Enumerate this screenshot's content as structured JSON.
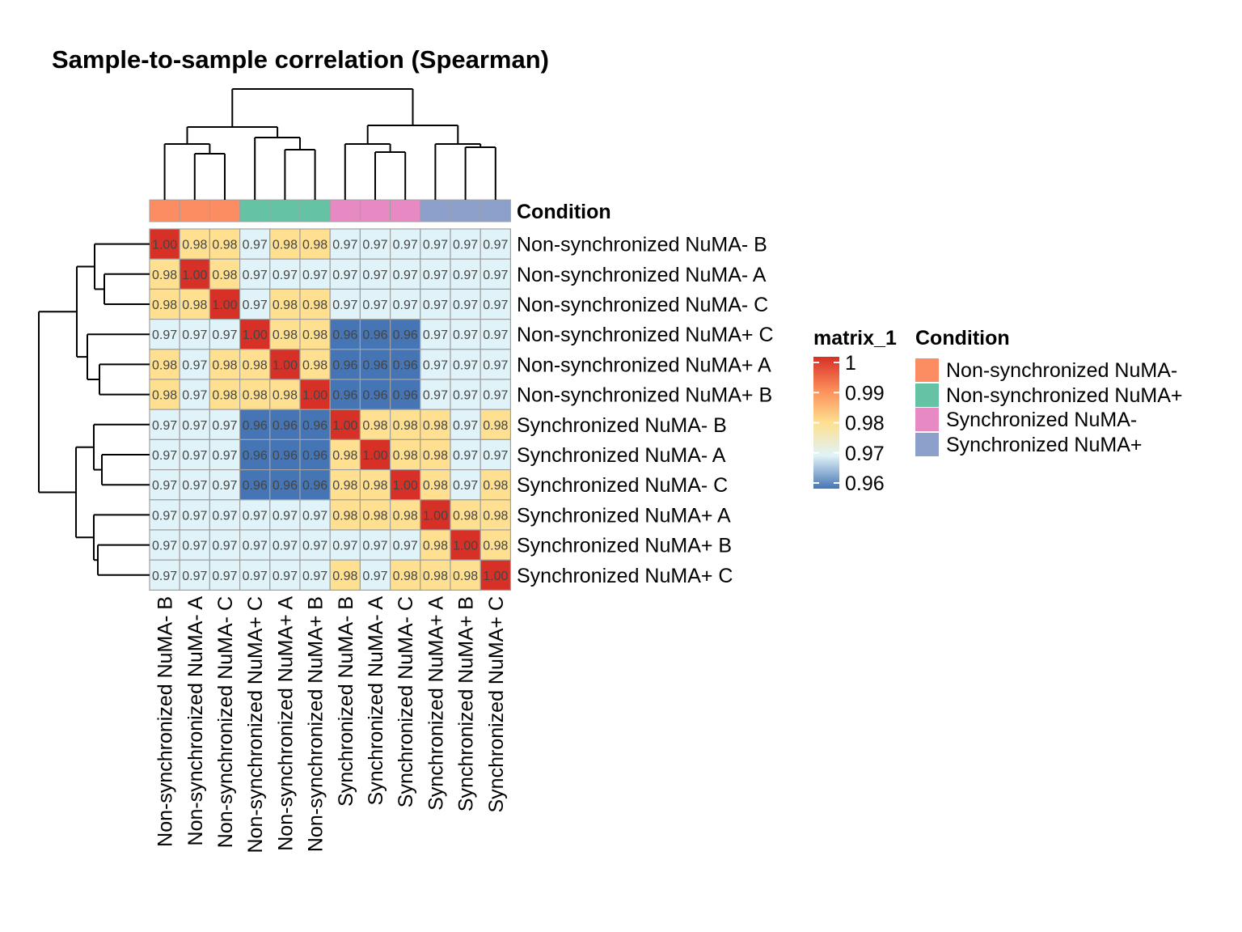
{
  "chart_data": {
    "type": "heatmap",
    "title": "Sample-to-sample correlation (Spearman)",
    "samples": [
      "Non-synchronized NuMA- B",
      "Non-synchronized NuMA- A",
      "Non-synchronized NuMA- C",
      "Non-synchronized NuMA+ C",
      "Non-synchronized NuMA+ A",
      "Non-synchronized NuMA+ B",
      "Synchronized NuMA- B",
      "Synchronized NuMA- A",
      "Synchronized NuMA- C",
      "Synchronized NuMA+ A",
      "Synchronized NuMA+ B",
      "Synchronized NuMA+ C"
    ],
    "conditions": [
      "Non-synchronized NuMA-",
      "Non-synchronized NuMA-",
      "Non-synchronized NuMA-",
      "Non-synchronized NuMA+",
      "Non-synchronized NuMA+",
      "Non-synchronized NuMA+",
      "Synchronized NuMA-",
      "Synchronized NuMA-",
      "Synchronized NuMA-",
      "Synchronized NuMA+",
      "Synchronized NuMA+",
      "Synchronized NuMA+"
    ],
    "matrix": [
      [
        1.0,
        0.98,
        0.98,
        0.97,
        0.98,
        0.98,
        0.97,
        0.97,
        0.97,
        0.97,
        0.97,
        0.97
      ],
      [
        0.98,
        1.0,
        0.98,
        0.97,
        0.97,
        0.97,
        0.97,
        0.97,
        0.97,
        0.97,
        0.97,
        0.97
      ],
      [
        0.98,
        0.98,
        1.0,
        0.97,
        0.98,
        0.98,
        0.97,
        0.97,
        0.97,
        0.97,
        0.97,
        0.97
      ],
      [
        0.97,
        0.97,
        0.97,
        1.0,
        0.98,
        0.98,
        0.96,
        0.96,
        0.96,
        0.97,
        0.97,
        0.97
      ],
      [
        0.98,
        0.97,
        0.98,
        0.98,
        1.0,
        0.98,
        0.96,
        0.96,
        0.96,
        0.97,
        0.97,
        0.97
      ],
      [
        0.98,
        0.97,
        0.98,
        0.98,
        0.98,
        1.0,
        0.96,
        0.96,
        0.96,
        0.97,
        0.97,
        0.97
      ],
      [
        0.97,
        0.97,
        0.97,
        0.96,
        0.96,
        0.96,
        1.0,
        0.98,
        0.98,
        0.98,
        0.97,
        0.98
      ],
      [
        0.97,
        0.97,
        0.97,
        0.96,
        0.96,
        0.96,
        0.98,
        1.0,
        0.98,
        0.98,
        0.97,
        0.97
      ],
      [
        0.97,
        0.97,
        0.97,
        0.96,
        0.96,
        0.96,
        0.98,
        0.98,
        1.0,
        0.98,
        0.97,
        0.98
      ],
      [
        0.97,
        0.97,
        0.97,
        0.97,
        0.97,
        0.97,
        0.98,
        0.98,
        0.98,
        1.0,
        0.98,
        0.98
      ],
      [
        0.97,
        0.97,
        0.97,
        0.97,
        0.97,
        0.97,
        0.97,
        0.97,
        0.97,
        0.98,
        1.0,
        0.98
      ],
      [
        0.97,
        0.97,
        0.97,
        0.97,
        0.97,
        0.97,
        0.98,
        0.97,
        0.98,
        0.98,
        0.98,
        1.0
      ]
    ],
    "color_scale": {
      "title": "matrix_1",
      "ticks": [
        "1",
        "0.99",
        "0.98",
        "0.97",
        "0.96"
      ],
      "tick_values": [
        1.0,
        0.99,
        0.98,
        0.97,
        0.96
      ],
      "colors": [
        "#d73027",
        "#fc8d59",
        "#fee090",
        "#e0f3f8",
        "#4575b4"
      ]
    },
    "annotation": {
      "title": "Condition",
      "levels": [
        {
          "name": "Non-synchronized NuMA-",
          "color": "#fc8d62"
        },
        {
          "name": "Non-synchronized NuMA+",
          "color": "#66c2a5"
        },
        {
          "name": "Synchronized NuMA-",
          "color": "#e78ac3"
        },
        {
          "name": "Synchronized NuMA+",
          "color": "#8da0cb"
        }
      ]
    },
    "dendrogram": "hierarchical clustering on rows and columns",
    "legend_position": "right"
  }
}
